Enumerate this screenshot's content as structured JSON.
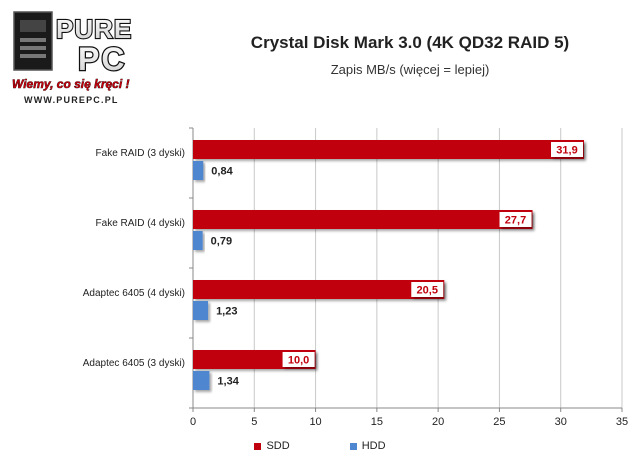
{
  "logo": {
    "brand_top": "PURE",
    "brand_bottom": "PC",
    "tagline": "Wiemy, co się kręci !",
    "url": "WWW.PUREPC.PL"
  },
  "colors": {
    "sdd": "#c0000c",
    "hdd": "#4f86d0",
    "grid": "#c8c8c8",
    "text": "#222222"
  },
  "chart_data": {
    "type": "bar",
    "orientation": "horizontal",
    "title": "Crystal Disk Mark 3.0 (4K QD32 RAID 5)",
    "subtitle": "Zapis MB/s (więcej = lepiej)",
    "xlabel": "",
    "ylabel": "",
    "xlim": [
      0,
      35
    ],
    "xticks": [
      "0",
      "5",
      "10",
      "15",
      "20",
      "25",
      "30",
      "35"
    ],
    "grid": true,
    "legend_position": "bottom",
    "categories": [
      "Fake RAID (3 dyski)",
      "Fake RAID (4 dyski)",
      "Adaptec 6405 (4 dyski)",
      "Adaptec 6405 (3 dyski)"
    ],
    "series": [
      {
        "name": "SDD",
        "values": [
          31.9,
          27.7,
          20.5,
          10.0
        ],
        "labels": [
          "31,9",
          "27,7",
          "20,5",
          "10,0"
        ]
      },
      {
        "name": "HDD",
        "values": [
          0.84,
          0.79,
          1.23,
          1.34
        ],
        "labels": [
          "0,84",
          "0,79",
          "1,23",
          "1,34"
        ]
      }
    ]
  }
}
